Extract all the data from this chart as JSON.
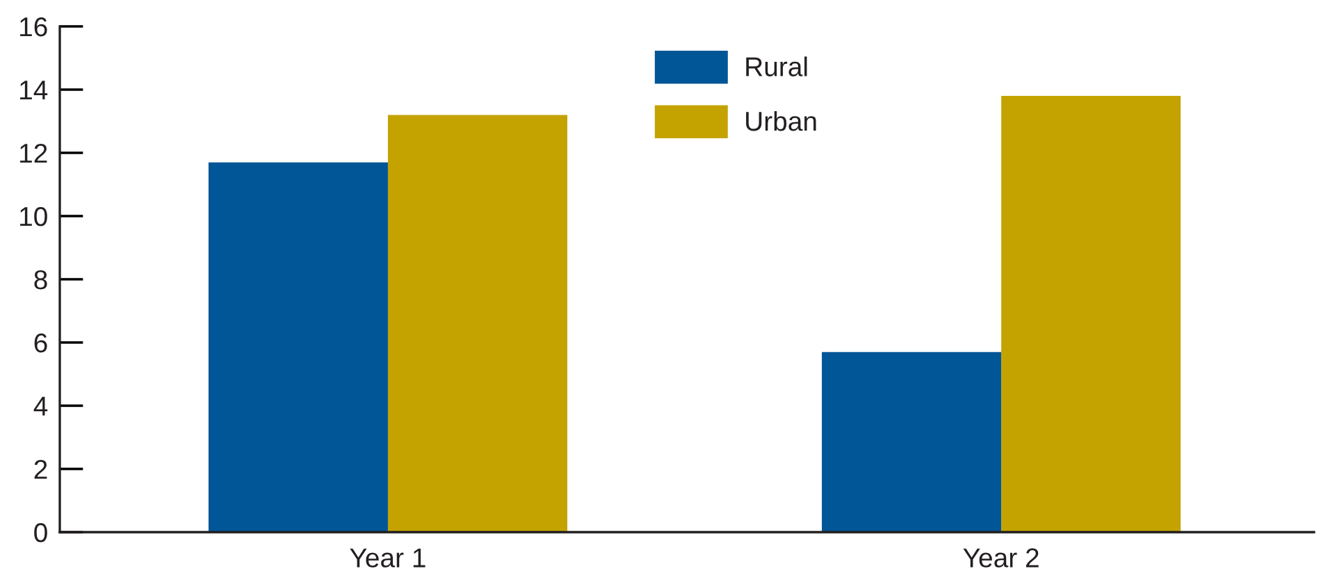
{
  "chart_data": {
    "type": "bar",
    "categories": [
      "Year 1",
      "Year 2"
    ],
    "series": [
      {
        "name": "Rural",
        "color": "#005696",
        "values": [
          11.7,
          5.7
        ]
      },
      {
        "name": "Urban",
        "color": "#c4a300",
        "values": [
          13.2,
          13.8
        ]
      }
    ],
    "ylim": [
      0,
      16
    ],
    "yticks": [
      0,
      2,
      4,
      6,
      8,
      10,
      12,
      14,
      16
    ],
    "grid": false,
    "legend": "top"
  }
}
